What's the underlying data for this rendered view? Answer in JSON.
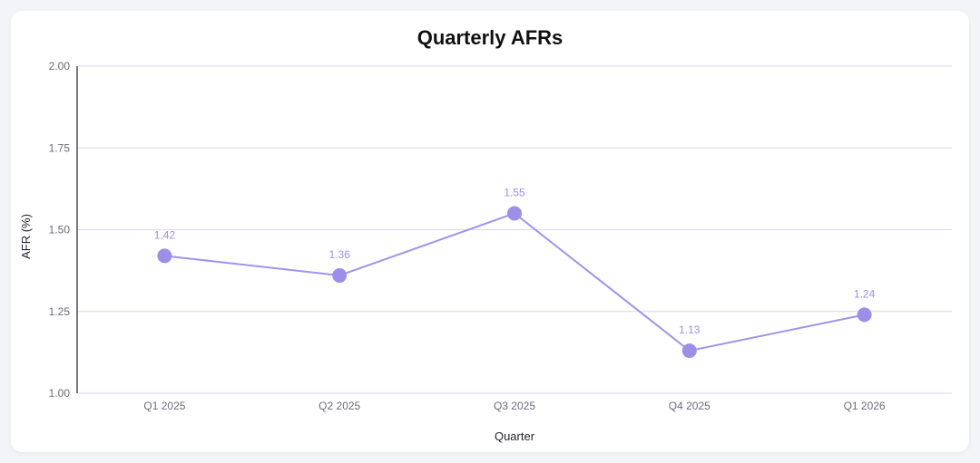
{
  "chart_data": {
    "type": "line",
    "title": "Quarterly AFRs",
    "xlabel": "Quarter",
    "ylabel": "AFR (%)",
    "categories": [
      "Q1 2025",
      "Q2 2025",
      "Q3 2025",
      "Q4 2025",
      "Q1 2026"
    ],
    "values": [
      1.42,
      1.36,
      1.55,
      1.13,
      1.24
    ],
    "data_labels": [
      "1.42",
      "1.36",
      "1.55",
      "1.13",
      "1.24"
    ],
    "ylim": [
      1.0,
      2.0
    ],
    "yticks": [
      "1.00",
      "1.25",
      "1.50",
      "1.75",
      "2.00"
    ],
    "ytick_values": [
      1.0,
      1.25,
      1.5,
      1.75,
      2.0
    ],
    "grid": true,
    "legend": "none",
    "colors": {
      "line": "#a193e8",
      "point": "#9d8ee8",
      "label": "#9d8ee8",
      "grid": "#d9d6f0",
      "axis": "#222222"
    }
  }
}
